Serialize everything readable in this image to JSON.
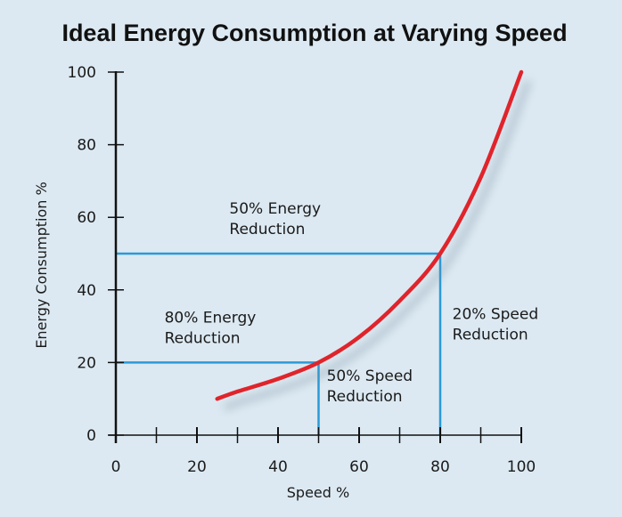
{
  "chart_data": {
    "type": "line",
    "title": "Ideal Energy Consumption at Varying Speed",
    "xlabel": "Speed %",
    "ylabel": "Energy Consumption %",
    "xlim": [
      0,
      100
    ],
    "ylim": [
      0,
      100
    ],
    "x_ticks": [
      0,
      20,
      40,
      60,
      80,
      100
    ],
    "x_minor_ticks": [
      10,
      30,
      50,
      70,
      90
    ],
    "y_ticks": [
      0,
      20,
      40,
      60,
      80,
      100
    ],
    "grid": false,
    "series": [
      {
        "name": "Energy consumption",
        "color": "#e0242b",
        "x": [
          25,
          30,
          40,
          50,
          60,
          70,
          80,
          90,
          100
        ],
        "y": [
          10,
          12,
          15.5,
          20,
          27,
          37,
          50,
          71,
          100
        ]
      }
    ],
    "reference_lines": [
      {
        "type": "horizontal",
        "y": 50,
        "x_from": 0,
        "x_to": 80,
        "color": "#2a9ad8"
      },
      {
        "type": "horizontal",
        "y": 20,
        "x_from": 0,
        "x_to": 50,
        "color": "#2a9ad8"
      },
      {
        "type": "vertical",
        "x": 50,
        "y_from": 0,
        "y_to": 20,
        "color": "#2a9ad8"
      },
      {
        "type": "vertical",
        "x": 80,
        "y_from": 0,
        "y_to": 50,
        "color": "#2a9ad8"
      }
    ],
    "annotations": [
      {
        "lines": [
          "50% Energy",
          "Reduction"
        ],
        "x": 28,
        "y": 61
      },
      {
        "lines": [
          "80% Energy",
          "Reduction"
        ],
        "x": 12,
        "y": 31
      },
      {
        "lines": [
          "50% Speed",
          "Reduction"
        ],
        "x": 52,
        "y": 15
      },
      {
        "lines": [
          "20% Speed",
          "Reduction"
        ],
        "x": 83,
        "y": 32
      }
    ]
  }
}
